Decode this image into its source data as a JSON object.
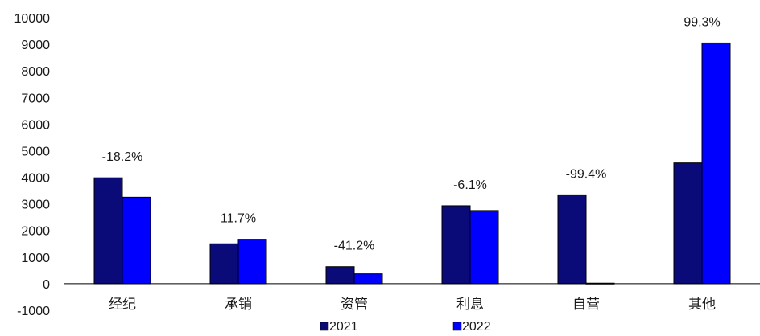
{
  "chart_data": {
    "type": "bar",
    "categories": [
      "经纪",
      "承销",
      "资管",
      "利息",
      "自营",
      "其他"
    ],
    "series": [
      {
        "name": "2021",
        "color": "#0a0a78",
        "values": [
          3980,
          1500,
          640,
          2930,
          3340,
          4540
        ]
      },
      {
        "name": "2022",
        "color": "#0000ff",
        "values": [
          3250,
          1670,
          370,
          2750,
          20,
          9050
        ]
      }
    ],
    "growth_labels": [
      "-18.2%",
      "11.7%",
      "-41.2%",
      "-6.1%",
      "-99.4%",
      "99.3%"
    ],
    "ylim": [
      -1000,
      10000
    ],
    "yticks": [
      10000,
      9000,
      8000,
      7000,
      6000,
      5000,
      4000,
      3000,
      2000,
      1000,
      0,
      -1000
    ],
    "grid": false,
    "legend_position": "bottom",
    "xlabel": "",
    "ylabel": "",
    "title": ""
  }
}
